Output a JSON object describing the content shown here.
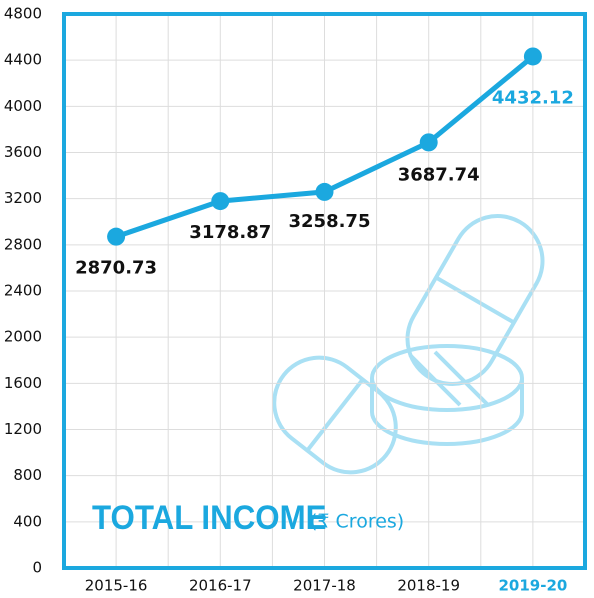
{
  "chart_data": {
    "type": "line",
    "title": "TOTAL INCOME",
    "subtitle": "(₹ Crores)",
    "categories": [
      "2015-16",
      "2016-17",
      "2017-18",
      "2018-19",
      "2019-20"
    ],
    "series": [
      {
        "name": "Total Income",
        "color": "#1ba8df",
        "values": [
          2870.73,
          3178.87,
          3258.75,
          3687.74,
          4432.12
        ]
      }
    ],
    "ylim": [
      0,
      4800
    ],
    "yticks": [
      0,
      400,
      800,
      1200,
      1600,
      2000,
      2400,
      2800,
      3200,
      3600,
      4000,
      4400,
      4800
    ],
    "grid": true
  }
}
